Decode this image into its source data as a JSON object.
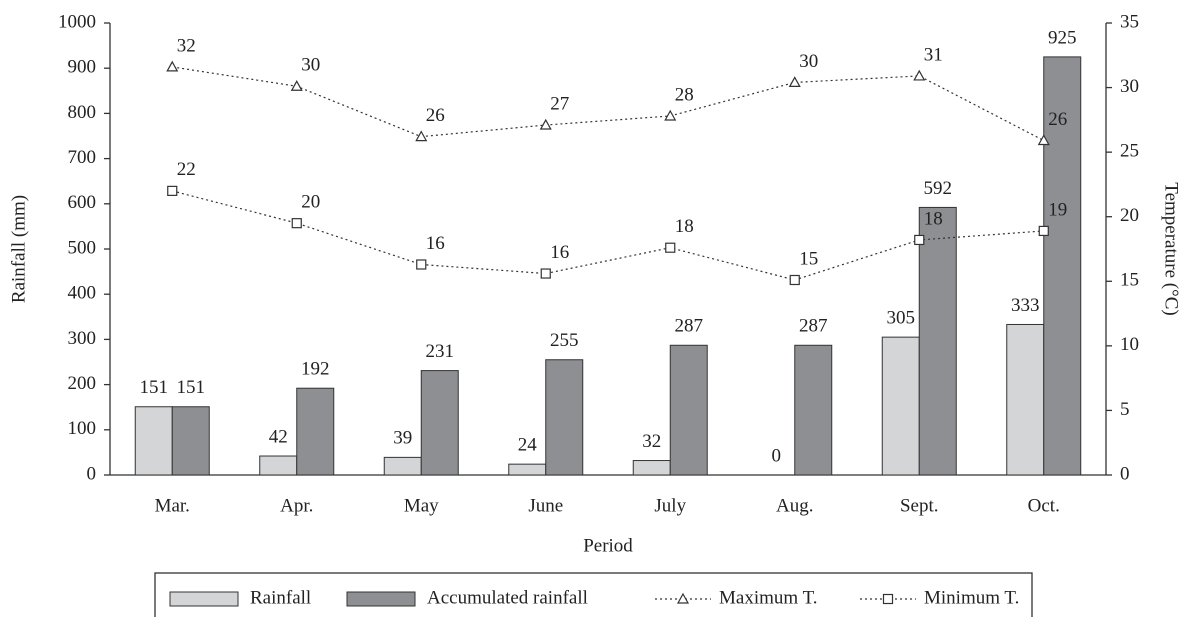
{
  "chart_data": {
    "type": "bar",
    "categories": [
      "Mar.",
      "Apr.",
      "May",
      "June",
      "July",
      "Aug.",
      "Sept.",
      "Oct."
    ],
    "x_label": "Period",
    "y_label": "Rainfall (mm)",
    "y2_label": "Temperature (°C)",
    "ylim": [
      0,
      1000
    ],
    "yticks": [
      0,
      100,
      200,
      300,
      400,
      500,
      600,
      700,
      800,
      900,
      1000
    ],
    "y2lim": [
      0,
      35
    ],
    "y2ticks": [
      0,
      5,
      10,
      15,
      20,
      25,
      30,
      35
    ],
    "series": [
      {
        "name": "Rainfall",
        "type": "bar",
        "color": "#d4d5d7",
        "values": [
          151,
          42,
          39,
          24,
          32,
          0,
          305,
          333
        ]
      },
      {
        "name": "Accumulated rainfall",
        "type": "bar",
        "color": "#8e8f93",
        "values": [
          151,
          192,
          231,
          255,
          287,
          287,
          592,
          925
        ]
      },
      {
        "name": "Maximum T.",
        "type": "line",
        "axis": "y2",
        "marker": "triangle",
        "color": "#333333",
        "values": [
          31.6,
          30.1,
          26.2,
          27.1,
          27.8,
          30.4,
          30.9,
          25.9
        ],
        "value_labels": [
          "32",
          "30",
          "26",
          "27",
          "28",
          "30",
          "31",
          "26"
        ]
      },
      {
        "name": "Minimum T.",
        "type": "line",
        "axis": "y2",
        "marker": "square",
        "color": "#333333",
        "values": [
          22,
          19.5,
          16.3,
          15.6,
          17.6,
          15.1,
          18.2,
          18.9
        ],
        "value_labels": [
          "22",
          "20",
          "16",
          "16",
          "18",
          "15",
          "18",
          "19"
        ]
      }
    ]
  }
}
